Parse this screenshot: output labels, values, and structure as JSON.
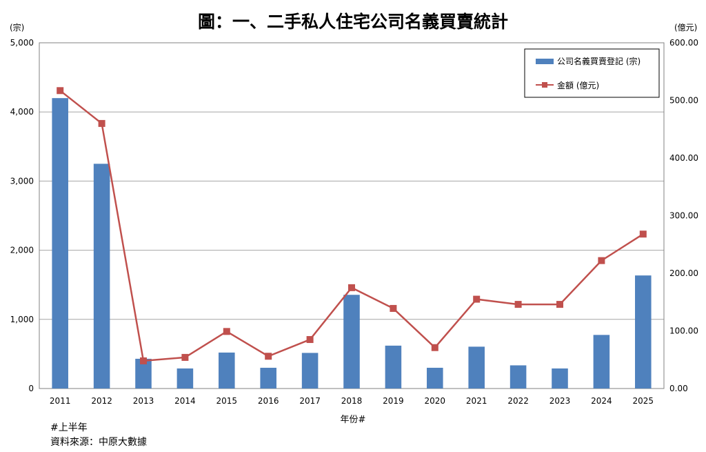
{
  "chart_data": {
    "type": "bar",
    "title": "圖：一、二手私人住宅公司名義買賣統計",
    "xlabel": "年份#",
    "ylabel_left": "(宗)",
    "ylabel_right": "(億元)",
    "categories": [
      "2011",
      "2012",
      "2013",
      "2014",
      "2015",
      "2016",
      "2017",
      "2018",
      "2019",
      "2020",
      "2021",
      "2022",
      "2023",
      "2024",
      "2025"
    ],
    "y_left_ticks": [
      "0",
      "1,000",
      "2,000",
      "3,000",
      "4,000",
      "5,000"
    ],
    "y_right_ticks": [
      "0.00",
      "100.00",
      "200.00",
      "300.00",
      "400.00",
      "500.00",
      "600.00"
    ],
    "ylim_left": [
      0,
      5000
    ],
    "ylim_right": [
      0,
      600
    ],
    "grid": true,
    "legend_position": "top-right",
    "series": [
      {
        "name": "公司名義買賣登記 (宗)",
        "type": "bar",
        "axis": "left",
        "color": "#4F81BD",
        "values": [
          4200,
          3250,
          430,
          290,
          520,
          300,
          515,
          1355,
          620,
          300,
          605,
          335,
          290,
          775,
          1635
        ]
      },
      {
        "name": "金額 (億元)",
        "type": "line",
        "axis": "right",
        "color": "#C0504D",
        "values": [
          517,
          460,
          48,
          54,
          99,
          56,
          85,
          175,
          139,
          71,
          155,
          146,
          146,
          222,
          268
        ]
      }
    ]
  },
  "footnotes": {
    "note1": "#上半年",
    "note2": "資料來源：中原大數據"
  }
}
